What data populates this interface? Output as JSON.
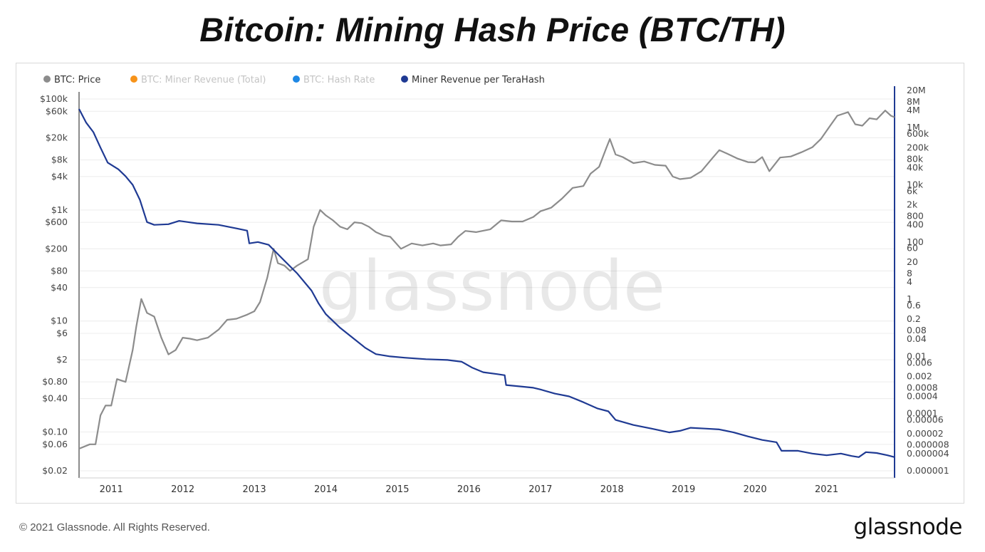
{
  "title": "Bitcoin: Mining Hash Price (BTC/TH)",
  "footer": {
    "copyright": "© 2021 Glassnode. All Rights Reserved.",
    "logo": "glassnode"
  },
  "watermark": "glassnode",
  "colors": {
    "price": "#8c8c8c",
    "revenue_total": "#f7931a",
    "hash_rate": "#1e88e5",
    "revenue_per_th": "#1f3a93",
    "grid": "#ececec"
  },
  "chart_data": {
    "type": "line",
    "legend": [
      {
        "name": "BTC: Price",
        "color": "#8c8c8c",
        "active": true
      },
      {
        "name": "BTC: Miner Revenue (Total)",
        "color": "#f7931a",
        "active": false
      },
      {
        "name": "BTC: Hash Rate",
        "color": "#1e88e5",
        "active": false
      },
      {
        "name": "Miner Revenue per TeraHash",
        "color": "#1f3a93",
        "active": true
      }
    ],
    "x_ticks": [
      "2011",
      "2012",
      "2013",
      "2014",
      "2015",
      "2016",
      "2017",
      "2018",
      "2019",
      "2020",
      "2021"
    ],
    "x_range": [
      2010.55,
      2021.95
    ],
    "y_left": {
      "scale": "log",
      "range": [
        0.02,
        100000
      ],
      "ticks": [
        {
          "label": "$100k",
          "value": 100000
        },
        {
          "label": "$60k",
          "value": 60000
        },
        {
          "label": "$20k",
          "value": 20000
        },
        {
          "label": "$8k",
          "value": 8000
        },
        {
          "label": "$4k",
          "value": 4000
        },
        {
          "label": "$1k",
          "value": 1000
        },
        {
          "label": "$600",
          "value": 600
        },
        {
          "label": "$200",
          "value": 200
        },
        {
          "label": "$80",
          "value": 80
        },
        {
          "label": "$40",
          "value": 40
        },
        {
          "label": "$10",
          "value": 10
        },
        {
          "label": "$6",
          "value": 6
        },
        {
          "label": "$2",
          "value": 2
        },
        {
          "label": "$0.80",
          "value": 0.8
        },
        {
          "label": "$0.40",
          "value": 0.4
        },
        {
          "label": "$0.10",
          "value": 0.1
        },
        {
          "label": "$0.06",
          "value": 0.06
        },
        {
          "label": "$0.02",
          "value": 0.02
        }
      ]
    },
    "y_right": {
      "scale": "log",
      "range": [
        1e-06,
        20000000
      ],
      "ticks": [
        {
          "label": "20M",
          "value": 20000000
        },
        {
          "label": "8M",
          "value": 8000000
        },
        {
          "label": "4M",
          "value": 4000000
        },
        {
          "label": "1M",
          "value": 1000000
        },
        {
          "label": "600k",
          "value": 600000
        },
        {
          "label": "200k",
          "value": 200000
        },
        {
          "label": "80k",
          "value": 80000
        },
        {
          "label": "40k",
          "value": 40000
        },
        {
          "label": "10k",
          "value": 10000
        },
        {
          "label": "6k",
          "value": 6000
        },
        {
          "label": "2k",
          "value": 2000
        },
        {
          "label": "800",
          "value": 800
        },
        {
          "label": "400",
          "value": 400
        },
        {
          "label": "100",
          "value": 100
        },
        {
          "label": "60",
          "value": 60
        },
        {
          "label": "20",
          "value": 20
        },
        {
          "label": "8",
          "value": 8
        },
        {
          "label": "4",
          "value": 4
        },
        {
          "label": "1",
          "value": 1
        },
        {
          "label": "0.6",
          "value": 0.6
        },
        {
          "label": "0.2",
          "value": 0.2
        },
        {
          "label": "0.08",
          "value": 0.08
        },
        {
          "label": "0.04",
          "value": 0.04
        },
        {
          "label": "0.01",
          "value": 0.01
        },
        {
          "label": "0.006",
          "value": 0.006
        },
        {
          "label": "0.002",
          "value": 0.002
        },
        {
          "label": "0.0008",
          "value": 0.0008
        },
        {
          "label": "0.0004",
          "value": 0.0004
        },
        {
          "label": "0.0001",
          "value": 0.0001
        },
        {
          "label": "0.00006",
          "value": 6e-05
        },
        {
          "label": "0.00002",
          "value": 2e-05
        },
        {
          "label": "0.000008",
          "value": 8e-06
        },
        {
          "label": "0.000004",
          "value": 4e-06
        },
        {
          "label": "0.000001",
          "value": 1e-06
        }
      ]
    },
    "series": [
      {
        "name": "BTC: Price",
        "axis": "left",
        "color": "#8c8c8c",
        "points": [
          [
            2010.55,
            0.05
          ],
          [
            2010.7,
            0.06
          ],
          [
            2010.78,
            0.06
          ],
          [
            2010.85,
            0.2
          ],
          [
            2010.92,
            0.3
          ],
          [
            2011.0,
            0.3
          ],
          [
            2011.08,
            0.9
          ],
          [
            2011.2,
            0.8
          ],
          [
            2011.3,
            3
          ],
          [
            2011.35,
            8
          ],
          [
            2011.42,
            25
          ],
          [
            2011.5,
            14
          ],
          [
            2011.6,
            12
          ],
          [
            2011.7,
            5
          ],
          [
            2011.8,
            2.5
          ],
          [
            2011.9,
            3
          ],
          [
            2012.0,
            5
          ],
          [
            2012.1,
            4.8
          ],
          [
            2012.2,
            4.5
          ],
          [
            2012.35,
            5
          ],
          [
            2012.5,
            7
          ],
          [
            2012.62,
            10.5
          ],
          [
            2012.75,
            11
          ],
          [
            2012.9,
            13
          ],
          [
            2013.0,
            15
          ],
          [
            2013.08,
            22
          ],
          [
            2013.18,
            60
          ],
          [
            2013.27,
            200
          ],
          [
            2013.33,
            110
          ],
          [
            2013.42,
            100
          ],
          [
            2013.5,
            80
          ],
          [
            2013.6,
            100
          ],
          [
            2013.75,
            130
          ],
          [
            2013.83,
            500
          ],
          [
            2013.92,
            1000
          ],
          [
            2014.0,
            800
          ],
          [
            2014.1,
            650
          ],
          [
            2014.2,
            500
          ],
          [
            2014.3,
            450
          ],
          [
            2014.4,
            600
          ],
          [
            2014.5,
            580
          ],
          [
            2014.6,
            500
          ],
          [
            2014.7,
            400
          ],
          [
            2014.8,
            350
          ],
          [
            2014.9,
            330
          ],
          [
            2015.05,
            200
          ],
          [
            2015.2,
            250
          ],
          [
            2015.35,
            230
          ],
          [
            2015.5,
            250
          ],
          [
            2015.6,
            230
          ],
          [
            2015.75,
            240
          ],
          [
            2015.85,
            330
          ],
          [
            2015.95,
            420
          ],
          [
            2016.1,
            400
          ],
          [
            2016.3,
            450
          ],
          [
            2016.45,
            650
          ],
          [
            2016.6,
            620
          ],
          [
            2016.75,
            620
          ],
          [
            2016.9,
            750
          ],
          [
            2017.0,
            950
          ],
          [
            2017.15,
            1100
          ],
          [
            2017.3,
            1600
          ],
          [
            2017.45,
            2500
          ],
          [
            2017.6,
            2700
          ],
          [
            2017.7,
            4500
          ],
          [
            2017.82,
            6000
          ],
          [
            2017.92,
            13000
          ],
          [
            2017.97,
            19000
          ],
          [
            2018.05,
            10000
          ],
          [
            2018.15,
            9000
          ],
          [
            2018.3,
            7000
          ],
          [
            2018.45,
            7500
          ],
          [
            2018.6,
            6500
          ],
          [
            2018.75,
            6300
          ],
          [
            2018.85,
            4000
          ],
          [
            2018.95,
            3600
          ],
          [
            2019.1,
            3800
          ],
          [
            2019.25,
            5000
          ],
          [
            2019.4,
            8500
          ],
          [
            2019.5,
            12000
          ],
          [
            2019.6,
            10500
          ],
          [
            2019.75,
            8500
          ],
          [
            2019.9,
            7300
          ],
          [
            2020.0,
            7200
          ],
          [
            2020.1,
            9000
          ],
          [
            2020.2,
            5000
          ],
          [
            2020.35,
            8800
          ],
          [
            2020.5,
            9200
          ],
          [
            2020.65,
            11000
          ],
          [
            2020.8,
            13500
          ],
          [
            2020.92,
            19000
          ],
          [
            2021.05,
            33000
          ],
          [
            2021.15,
            50000
          ],
          [
            2021.3,
            58000
          ],
          [
            2021.4,
            35000
          ],
          [
            2021.5,
            33000
          ],
          [
            2021.6,
            45000
          ],
          [
            2021.7,
            43000
          ],
          [
            2021.82,
            62000
          ],
          [
            2021.9,
            50000
          ],
          [
            2021.95,
            47000
          ]
        ]
      },
      {
        "name": "Miner Revenue per TeraHash",
        "axis": "right",
        "color": "#1f3a93",
        "points": [
          [
            2010.55,
            4500000
          ],
          [
            2010.65,
            1500000
          ],
          [
            2010.75,
            700000
          ],
          [
            2010.85,
            200000
          ],
          [
            2010.95,
            60000
          ],
          [
            2011.1,
            35000
          ],
          [
            2011.2,
            20000
          ],
          [
            2011.3,
            10000
          ],
          [
            2011.4,
            3000
          ],
          [
            2011.5,
            500
          ],
          [
            2011.6,
            400
          ],
          [
            2011.8,
            420
          ],
          [
            2011.95,
            550
          ],
          [
            2012.2,
            450
          ],
          [
            2012.5,
            400
          ],
          [
            2012.75,
            300
          ],
          [
            2012.9,
            250
          ],
          [
            2012.93,
            90
          ],
          [
            2013.05,
            100
          ],
          [
            2013.2,
            80
          ],
          [
            2013.4,
            25
          ],
          [
            2013.6,
            8
          ],
          [
            2013.8,
            2
          ],
          [
            2013.9,
            0.7
          ],
          [
            2014.0,
            0.3
          ],
          [
            2014.2,
            0.1
          ],
          [
            2014.4,
            0.04
          ],
          [
            2014.55,
            0.02
          ],
          [
            2014.7,
            0.012
          ],
          [
            2014.9,
            0.01
          ],
          [
            2015.1,
            0.009
          ],
          [
            2015.4,
            0.008
          ],
          [
            2015.7,
            0.0075
          ],
          [
            2015.9,
            0.0065
          ],
          [
            2016.05,
            0.004
          ],
          [
            2016.2,
            0.0028
          ],
          [
            2016.4,
            0.0024
          ],
          [
            2016.5,
            0.0022
          ],
          [
            2016.52,
            0.001
          ],
          [
            2016.7,
            0.0009
          ],
          [
            2016.9,
            0.0008
          ],
          [
            2017.0,
            0.0007
          ],
          [
            2017.2,
            0.0005
          ],
          [
            2017.4,
            0.0004
          ],
          [
            2017.6,
            0.00025
          ],
          [
            2017.8,
            0.00015
          ],
          [
            2017.95,
            0.00012
          ],
          [
            2018.05,
            6e-05
          ],
          [
            2018.3,
            4e-05
          ],
          [
            2018.55,
            3e-05
          ],
          [
            2018.8,
            2.2e-05
          ],
          [
            2018.95,
            2.5e-05
          ],
          [
            2019.1,
            3.2e-05
          ],
          [
            2019.3,
            3e-05
          ],
          [
            2019.5,
            2.8e-05
          ],
          [
            2019.7,
            2.2e-05
          ],
          [
            2019.9,
            1.6e-05
          ],
          [
            2020.1,
            1.2e-05
          ],
          [
            2020.3,
            1e-05
          ],
          [
            2020.37,
            5e-06
          ],
          [
            2020.6,
            5e-06
          ],
          [
            2020.8,
            4e-06
          ],
          [
            2021.0,
            3.5e-06
          ],
          [
            2021.2,
            4e-06
          ],
          [
            2021.35,
            3.3e-06
          ],
          [
            2021.45,
            3e-06
          ],
          [
            2021.55,
            4.5e-06
          ],
          [
            2021.7,
            4.2e-06
          ],
          [
            2021.85,
            3.5e-06
          ],
          [
            2021.95,
            3e-06
          ]
        ]
      }
    ]
  }
}
